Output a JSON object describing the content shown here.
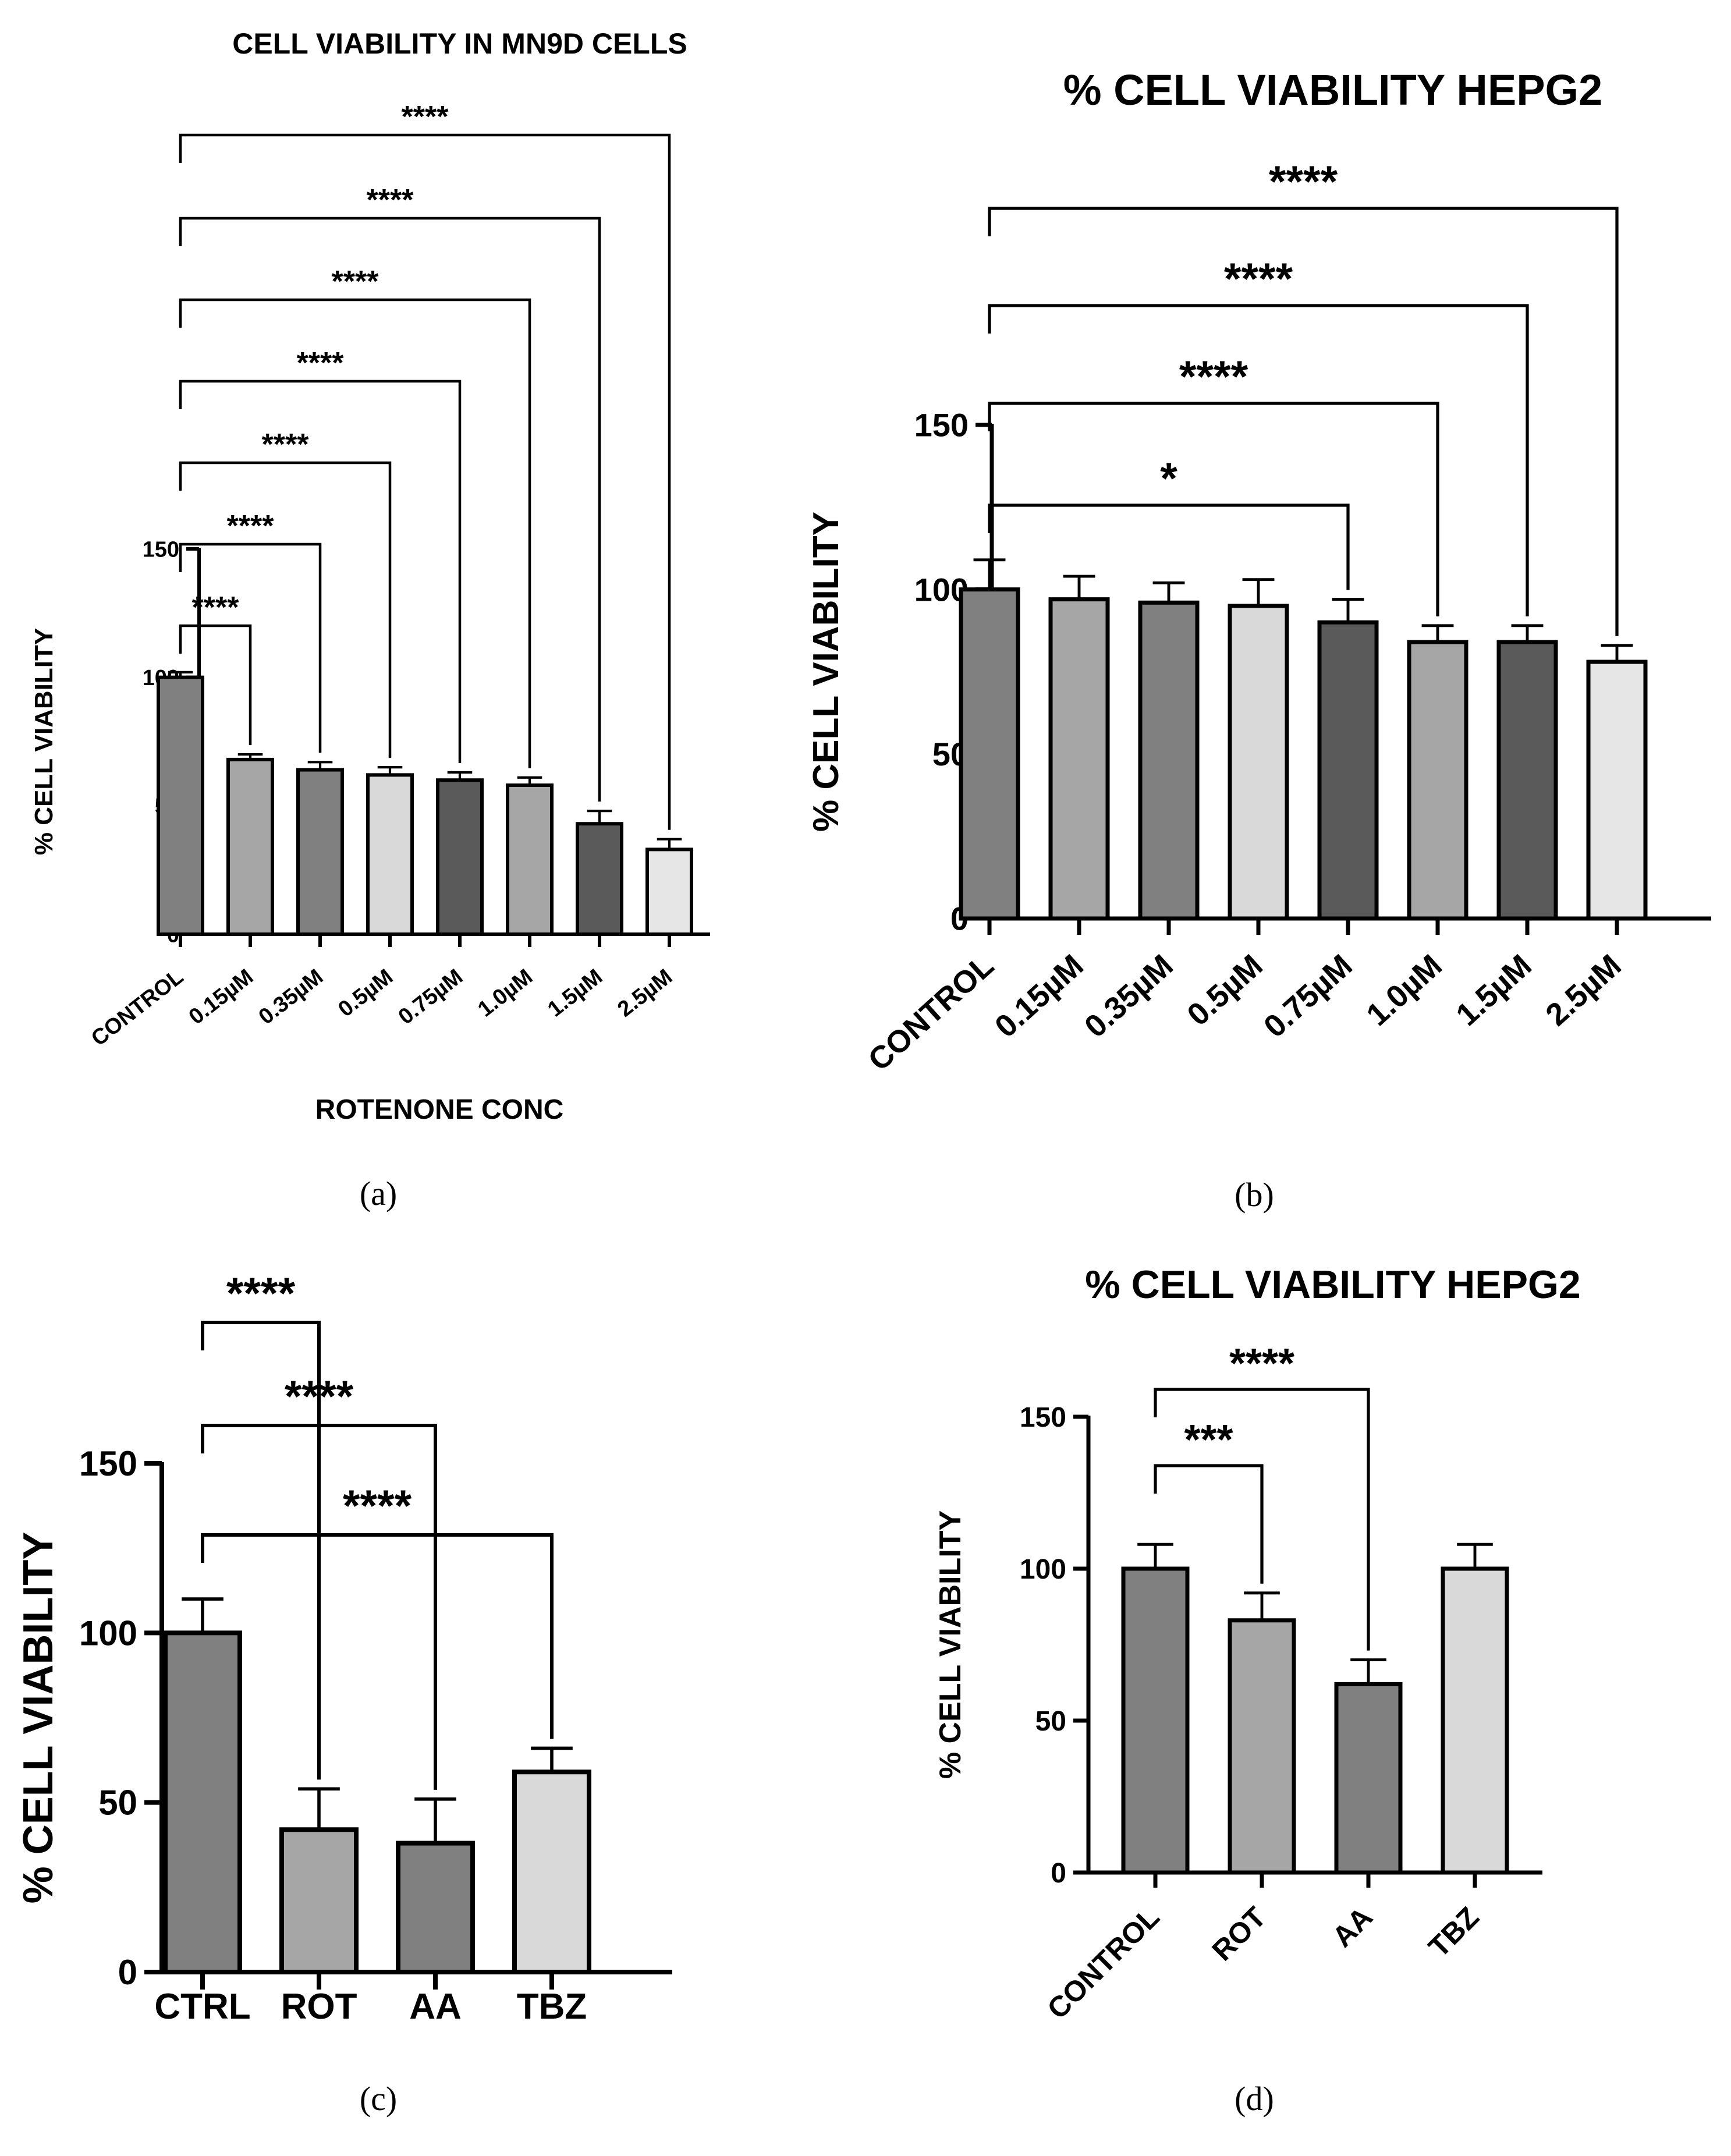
{
  "chart_data": [
    {
      "id": "a",
      "type": "bar",
      "title": "CELL VIABILITY IN MN9D CELLS",
      "caption": "(a)",
      "xlabel": "ROTENONE CONC",
      "ylabel": "% CELL VIABILITY",
      "ylim": [
        0,
        150
      ],
      "yticks": [
        0,
        50,
        100,
        150
      ],
      "ytick_labels": [
        "0",
        "50",
        "100",
        "150"
      ],
      "categories": [
        "CONTROL",
        "0.15µM",
        "0.35µM",
        "0.5µM",
        "0.75µM",
        "1.0µM",
        "1.5µM",
        "2.5µM"
      ],
      "values": [
        100,
        68,
        64,
        62,
        60,
        58,
        43,
        33
      ],
      "errors": [
        2,
        2,
        3,
        3,
        3,
        3,
        5,
        4
      ],
      "colors": [
        "#808080",
        "#a6a6a6",
        "#808080",
        "#d9d9d9",
        "#5a5a5a",
        "#a6a6a6",
        "#5a5a5a",
        "#e6e6e6"
      ],
      "comparisons": [
        {
          "to": 1,
          "label": "****"
        },
        {
          "to": 2,
          "label": "****"
        },
        {
          "to": 3,
          "label": "****"
        },
        {
          "to": 4,
          "label": "****"
        },
        {
          "to": 5,
          "label": "****"
        },
        {
          "to": 6,
          "label": "****"
        },
        {
          "to": 7,
          "label": "****"
        }
      ]
    },
    {
      "id": "b",
      "type": "bar",
      "title": "% CELL VIABILITY HEPG2",
      "caption": "(b)",
      "xlabel": "",
      "ylabel": "% CELL VIABILITY",
      "ylim": [
        0,
        150
      ],
      "yticks": [
        0,
        50,
        100,
        150
      ],
      "ytick_labels": [
        "0",
        "50",
        "100",
        "150"
      ],
      "categories": [
        "CONTROL",
        "0.15µM",
        "0.35µM",
        "0.5µM",
        "0.75µM",
        "1.0µM",
        "1.5µM",
        "2.5µM"
      ],
      "values": [
        100,
        97,
        96,
        95,
        90,
        84,
        84,
        78
      ],
      "errors": [
        9,
        7,
        6,
        8,
        7,
        5,
        5,
        5
      ],
      "colors": [
        "#808080",
        "#a6a6a6",
        "#808080",
        "#d9d9d9",
        "#5a5a5a",
        "#a6a6a6",
        "#5a5a5a",
        "#e6e6e6"
      ],
      "comparisons": [
        {
          "to": 4,
          "label": "*"
        },
        {
          "to": 5,
          "label": "****"
        },
        {
          "to": 6,
          "label": "****"
        },
        {
          "to": 7,
          "label": "****"
        }
      ]
    },
    {
      "id": "c",
      "type": "bar",
      "title": "",
      "caption": "(c)",
      "xlabel": "",
      "ylabel": "% CELL VIABILITY",
      "ylim": [
        0,
        150
      ],
      "yticks": [
        0,
        50,
        100,
        150
      ],
      "ytick_labels": [
        "0",
        "50",
        "100",
        "150"
      ],
      "categories": [
        "CTRL",
        "ROT",
        "AA",
        "TBZ"
      ],
      "values": [
        100,
        42,
        38,
        59
      ],
      "errors": [
        10,
        12,
        13,
        7
      ],
      "colors": [
        "#808080",
        "#a6a6a6",
        "#808080",
        "#d9d9d9"
      ],
      "comparisons": [
        {
          "to": 1,
          "label": "****"
        },
        {
          "to": 2,
          "label": "****"
        },
        {
          "to": 3,
          "label": "****"
        }
      ]
    },
    {
      "id": "d",
      "type": "bar",
      "title": "% CELL VIABILITY HEPG2",
      "caption": "(d)",
      "xlabel": "",
      "ylabel": "% CELL VIABILITY",
      "ylim": [
        0,
        150
      ],
      "yticks": [
        0,
        50,
        100,
        150
      ],
      "ytick_labels": [
        "0",
        "50",
        "100",
        "150"
      ],
      "categories": [
        "CONTROL",
        "ROT",
        "AA",
        "TBZ"
      ],
      "values": [
        100,
        83,
        62,
        100
      ],
      "errors": [
        8,
        9,
        8,
        8
      ],
      "colors": [
        "#808080",
        "#a6a6a6",
        "#808080",
        "#d9d9d9"
      ],
      "comparisons": [
        {
          "to": 1,
          "label": "***"
        },
        {
          "to": 2,
          "label": "****"
        }
      ]
    }
  ]
}
